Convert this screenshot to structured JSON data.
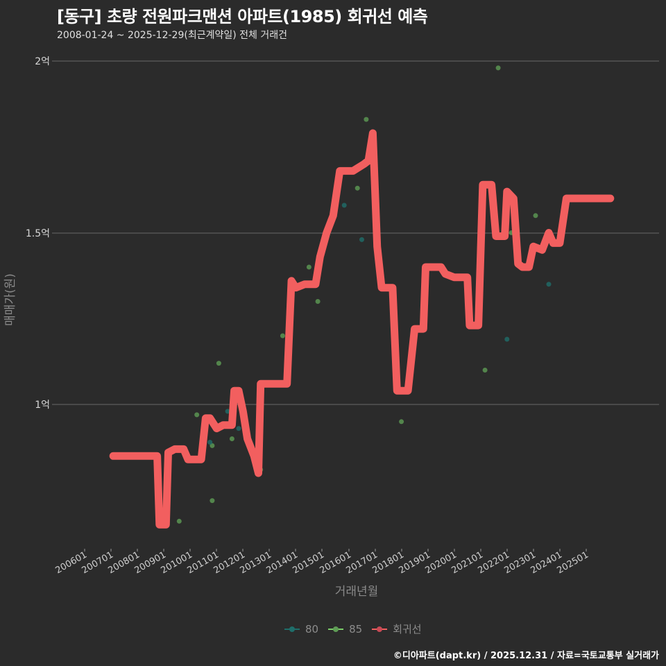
{
  "header": {
    "title": "[동구] 초량 전원파크맨션 아파트(1985) 회귀선 예측",
    "subtitle": "2008-01-24 ~ 2025-12-29(최근계약일) 전체 거래건"
  },
  "axes": {
    "y_title": "매매가(원)",
    "x_title": "거래년월",
    "y_ticks": [
      "1억",
      "1.5억",
      "2억"
    ],
    "x_ticks": [
      "200601",
      "200701",
      "200801",
      "200901",
      "201001",
      "201101",
      "201201",
      "201301",
      "201401",
      "201501",
      "201601",
      "201701",
      "201801",
      "201901",
      "202001",
      "202101",
      "202201",
      "202301",
      "202401",
      "202501"
    ]
  },
  "legend": {
    "items": [
      {
        "label": "80",
        "color": "#1f7a7a"
      },
      {
        "label": "85",
        "color": "#7ccf6a"
      },
      {
        "label": "회귀선",
        "color": "#f25f5f"
      }
    ]
  },
  "footer": {
    "credit": "©디아파트(dapt.kr) / 2025.12.31 / 자료=국토교통부 실거래가"
  },
  "colors": {
    "background": "#2b2b2b",
    "grid": "#6a6a6a",
    "regression": "#f25f5f",
    "series_80": "#1f6e6a",
    "series_85": "#5e9c55"
  },
  "chart_data": {
    "type": "line",
    "title": "[동구] 초량 전원파크맨션 아파트(1985) 회귀선 예측",
    "subtitle": "2008-01-24 ~ 2025-12-29(최근계약일) 전체 거래건",
    "xlabel": "거래년월",
    "ylabel": "매매가(원)",
    "ylim": [
      0.6,
      2.0
    ],
    "y_unit": "억",
    "grid": true,
    "legend_position": "bottom",
    "series": [
      {
        "name": "회귀선",
        "type": "line",
        "points": [
          [
            "2007-02",
            0.85
          ],
          [
            "2008-10",
            0.85
          ],
          [
            "2008-11",
            0.65
          ],
          [
            "2009-02",
            0.65
          ],
          [
            "2009-03",
            0.86
          ],
          [
            "2009-06",
            0.87
          ],
          [
            "2009-10",
            0.87
          ],
          [
            "2009-12",
            0.84
          ],
          [
            "2010-06",
            0.84
          ],
          [
            "2010-08",
            0.96
          ],
          [
            "2010-10",
            0.96
          ],
          [
            "2011-01",
            0.93
          ],
          [
            "2011-04",
            0.94
          ],
          [
            "2011-08",
            0.94
          ],
          [
            "2011-09",
            1.04
          ],
          [
            "2011-11",
            1.04
          ],
          [
            "2012-01",
            0.98
          ],
          [
            "2012-03",
            0.9
          ],
          [
            "2012-06",
            0.85
          ],
          [
            "2012-08",
            0.8
          ],
          [
            "2012-09",
            1.06
          ],
          [
            "2013-09",
            1.06
          ],
          [
            "2013-11",
            1.36
          ],
          [
            "2014-01",
            1.34
          ],
          [
            "2014-05",
            1.35
          ],
          [
            "2014-10",
            1.35
          ],
          [
            "2014-12",
            1.43
          ],
          [
            "2015-03",
            1.5
          ],
          [
            "2015-06",
            1.55
          ],
          [
            "2015-09",
            1.68
          ],
          [
            "2016-03",
            1.68
          ],
          [
            "2016-08",
            1.7
          ],
          [
            "2016-10",
            1.71
          ],
          [
            "2016-12",
            1.79
          ],
          [
            "2017-02",
            1.46
          ],
          [
            "2017-04",
            1.34
          ],
          [
            "2017-09",
            1.34
          ],
          [
            "2017-11",
            1.04
          ],
          [
            "2018-04",
            1.04
          ],
          [
            "2018-07",
            1.22
          ],
          [
            "2018-11",
            1.22
          ],
          [
            "2018-12",
            1.4
          ],
          [
            "2019-07",
            1.4
          ],
          [
            "2019-09",
            1.38
          ],
          [
            "2020-01",
            1.37
          ],
          [
            "2020-07",
            1.37
          ],
          [
            "2020-08",
            1.23
          ],
          [
            "2020-12",
            1.23
          ],
          [
            "2021-02",
            1.64
          ],
          [
            "2021-06",
            1.64
          ],
          [
            "2021-08",
            1.49
          ],
          [
            "2021-12",
            1.49
          ],
          [
            "2022-01",
            1.62
          ],
          [
            "2022-04",
            1.6
          ],
          [
            "2022-06",
            1.41
          ],
          [
            "2022-08",
            1.4
          ],
          [
            "2022-11",
            1.4
          ],
          [
            "2023-01",
            1.46
          ],
          [
            "2023-05",
            1.45
          ],
          [
            "2023-08",
            1.5
          ],
          [
            "2023-10",
            1.47
          ],
          [
            "2024-01",
            1.47
          ],
          [
            "2024-04",
            1.6
          ],
          [
            "2025-01",
            1.6
          ],
          [
            "2025-12",
            1.6
          ]
        ]
      },
      {
        "name": "85",
        "type": "scatter",
        "points": [
          [
            "2009-08",
            0.66
          ],
          [
            "2010-04",
            0.97
          ],
          [
            "2010-11",
            0.72
          ],
          [
            "2010-11",
            0.88
          ],
          [
            "2011-02",
            1.12
          ],
          [
            "2011-08",
            0.9
          ],
          [
            "2012-09",
            0.81
          ],
          [
            "2013-07",
            1.2
          ],
          [
            "2014-07",
            1.4
          ],
          [
            "2014-11",
            1.3
          ],
          [
            "2016-05",
            1.63
          ],
          [
            "2016-09",
            1.83
          ],
          [
            "2018-01",
            0.95
          ],
          [
            "2021-03",
            1.1
          ],
          [
            "2021-09",
            1.98
          ],
          [
            "2022-03",
            1.5
          ],
          [
            "2023-02",
            1.55
          ]
        ]
      },
      {
        "name": "80",
        "type": "scatter",
        "points": [
          [
            "2010-10",
            0.89
          ],
          [
            "2011-06",
            0.98
          ],
          [
            "2015-11",
            1.58
          ],
          [
            "2016-07",
            1.48
          ],
          [
            "2022-01",
            1.19
          ],
          [
            "2023-08",
            1.35
          ],
          [
            "2011-11",
            0.93
          ]
        ]
      }
    ]
  }
}
